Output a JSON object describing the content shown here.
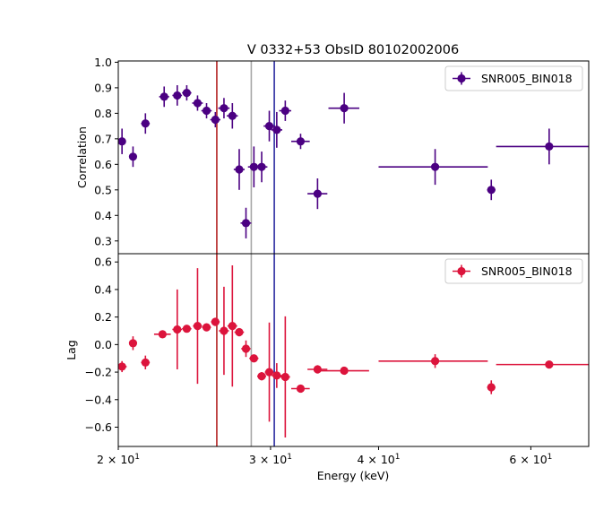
{
  "chart_data": {
    "type": "scatter",
    "title": "V 0332+53 ObsID 80102002006",
    "xlabel": "Energy (keV)",
    "xscale": "log",
    "xlim": [
      20.0,
      70.0
    ],
    "xticks": [
      {
        "value": 20,
        "base": "2 × 10",
        "exp": "1"
      },
      {
        "value": 30,
        "base": "3 × 10",
        "exp": "1"
      },
      {
        "value": 40,
        "base": "4 × 10",
        "exp": "1"
      },
      {
        "value": 60,
        "base": "6 × 10",
        "exp": "1"
      }
    ],
    "vlines": [
      {
        "x": 26.0,
        "color": "#b22222"
      },
      {
        "x": 28.5,
        "color": "#a8a8a8"
      },
      {
        "x": 30.3,
        "color": "#2a2aa0"
      }
    ],
    "panels": [
      {
        "name": "correlation",
        "ylabel": "Correlation",
        "ylim": [
          0.25,
          1.005
        ],
        "yticks": [
          {
            "value": 0.3,
            "label": "0.3"
          },
          {
            "value": 0.4,
            "label": "0.4"
          },
          {
            "value": 0.5,
            "label": "0.5"
          },
          {
            "value": 0.6,
            "label": "0.6"
          },
          {
            "value": 0.7,
            "label": "0.7"
          },
          {
            "value": 0.8,
            "label": "0.8"
          },
          {
            "value": 0.9,
            "label": "0.9"
          },
          {
            "value": 1.0,
            "label": "1.0"
          }
        ],
        "series": [
          {
            "name": "SNR005_BIN018",
            "color": "#4b0082",
            "points": [
              {
                "x": 20.2,
                "xerr": [
                  0.2,
                  0.2
                ],
                "y": 0.69,
                "yerr": 0.05
              },
              {
                "x": 20.8,
                "xerr": [
                  0.2,
                  0.2
                ],
                "y": 0.63,
                "yerr": 0.04
              },
              {
                "x": 21.5,
                "xerr": [
                  0.25,
                  0.25
                ],
                "y": 0.76,
                "yerr": 0.04
              },
              {
                "x": 22.6,
                "xerr": [
                  0.3,
                  0.3
                ],
                "y": 0.865,
                "yerr": 0.04
              },
              {
                "x": 23.4,
                "xerr": [
                  0.3,
                  0.3
                ],
                "y": 0.87,
                "yerr": 0.04
              },
              {
                "x": 24.0,
                "xerr": [
                  0.3,
                  0.3
                ],
                "y": 0.88,
                "yerr": 0.03
              },
              {
                "x": 24.7,
                "xerr": [
                  0.35,
                  0.35
                ],
                "y": 0.84,
                "yerr": 0.03
              },
              {
                "x": 25.3,
                "xerr": [
                  0.35,
                  0.35
                ],
                "y": 0.81,
                "yerr": 0.03
              },
              {
                "x": 25.9,
                "xerr": [
                  0.35,
                  0.35
                ],
                "y": 0.775,
                "yerr": 0.03
              },
              {
                "x": 26.5,
                "xerr": [
                  0.4,
                  0.4
                ],
                "y": 0.82,
                "yerr": 0.04
              },
              {
                "x": 27.1,
                "xerr": [
                  0.4,
                  0.4
                ],
                "y": 0.79,
                "yerr": 0.05
              },
              {
                "x": 27.6,
                "xerr": [
                  0.4,
                  0.4
                ],
                "y": 0.58,
                "yerr": 0.08
              },
              {
                "x": 28.1,
                "xerr": [
                  0.4,
                  0.4
                ],
                "y": 0.37,
                "yerr": 0.06
              },
              {
                "x": 28.7,
                "xerr": [
                  0.45,
                  0.45
                ],
                "y": 0.59,
                "yerr": 0.08
              },
              {
                "x": 29.3,
                "xerr": [
                  0.45,
                  0.45
                ],
                "y": 0.59,
                "yerr": 0.06
              },
              {
                "x": 29.9,
                "xerr": [
                  0.45,
                  0.45
                ],
                "y": 0.75,
                "yerr": 0.06
              },
              {
                "x": 30.5,
                "xerr": [
                  0.45,
                  0.45
                ],
                "y": 0.735,
                "yerr": 0.07
              },
              {
                "x": 31.2,
                "xerr": [
                  0.5,
                  0.5
                ],
                "y": 0.81,
                "yerr": 0.04
              },
              {
                "x": 32.5,
                "xerr": [
                  0.8,
                  0.8
                ],
                "y": 0.69,
                "yerr": 0.03
              },
              {
                "x": 34.0,
                "xerr": [
                  0.9,
                  0.9
                ],
                "y": 0.485,
                "yerr": 0.06
              },
              {
                "x": 36.5,
                "xerr": [
                  1.5,
                  1.5
                ],
                "y": 0.82,
                "yerr": 0.06
              },
              {
                "x": 46.5,
                "xerr": [
                  6.5,
                  7.0
                ],
                "y": 0.59,
                "yerr": 0.07
              },
              {
                "x": 54.0,
                "xerr": [
                  0.6,
                  0.6
                ],
                "y": 0.5,
                "yerr": 0.04
              },
              {
                "x": 63.0,
                "xerr": [
                  8.3,
                  7.0
                ],
                "y": 0.67,
                "yerr": 0.07
              }
            ]
          }
        ]
      },
      {
        "name": "lag",
        "ylabel": "Lag",
        "ylim": [
          -0.74,
          0.66
        ],
        "yticks": [
          {
            "value": -0.6,
            "label": "−0.6"
          },
          {
            "value": -0.4,
            "label": "−0.4"
          },
          {
            "value": -0.2,
            "label": "−0.2"
          },
          {
            "value": 0.0,
            "label": "0.0"
          },
          {
            "value": 0.2,
            "label": "0.2"
          },
          {
            "value": 0.4,
            "label": "0.4"
          },
          {
            "value": 0.6,
            "label": "0.6"
          }
        ],
        "series": [
          {
            "name": "SNR005_BIN018",
            "color": "#dc143c",
            "points": [
              {
                "x": 20.2,
                "xerr": [
                  0.25,
                  0.25
                ],
                "y": -0.16,
                "yerr": 0.04
              },
              {
                "x": 20.8,
                "xerr": [
                  0.2,
                  0.2
                ],
                "y": 0.01,
                "yerr": 0.05
              },
              {
                "x": 21.5,
                "xerr": [
                  0.25,
                  0.25
                ],
                "y": -0.13,
                "yerr": 0.05
              },
              {
                "x": 22.5,
                "xerr": [
                  0.5,
                  0.5
                ],
                "y": 0.075,
                "yerr": 0.02
              },
              {
                "x": 23.4,
                "xerr": [
                  0.3,
                  0.3
                ],
                "y": 0.11,
                "yerr": 0.29
              },
              {
                "x": 24.0,
                "xerr": [
                  0.3,
                  0.3
                ],
                "y": 0.115,
                "yerr": 0.02
              },
              {
                "x": 24.7,
                "xerr": [
                  0.3,
                  0.3
                ],
                "y": 0.135,
                "yerr": 0.42
              },
              {
                "x": 25.3,
                "xerr": [
                  0.3,
                  0.3
                ],
                "y": 0.125,
                "yerr": 0.02
              },
              {
                "x": 25.9,
                "xerr": [
                  0.3,
                  0.3
                ],
                "y": 0.165,
                "yerr": 0.03
              },
              {
                "x": 26.5,
                "xerr": [
                  0.35,
                  0.35
                ],
                "y": 0.1,
                "yerr": 0.32
              },
              {
                "x": 27.1,
                "xerr": [
                  0.35,
                  0.35
                ],
                "y": 0.135,
                "yerr": 0.44
              },
              {
                "x": 27.6,
                "xerr": [
                  0.35,
                  0.35
                ],
                "y": 0.09,
                "yerr": 0.03
              },
              {
                "x": 28.1,
                "xerr": [
                  0.35,
                  0.35
                ],
                "y": -0.03,
                "yerr": 0.06
              },
              {
                "x": 28.7,
                "xerr": [
                  0.35,
                  0.35
                ],
                "y": -0.1,
                "yerr": 0.02
              },
              {
                "x": 29.3,
                "xerr": [
                  0.35,
                  0.35
                ],
                "y": -0.23,
                "yerr": 0.03
              },
              {
                "x": 29.9,
                "xerr": [
                  0.35,
                  0.35
                ],
                "y": -0.2,
                "yerr": 0.36
              },
              {
                "x": 30.5,
                "xerr": [
                  0.4,
                  0.4
                ],
                "y": -0.225,
                "yerr": 0.09
              },
              {
                "x": 31.2,
                "xerr": [
                  0.4,
                  0.4
                ],
                "y": -0.235,
                "yerr": 0.44
              },
              {
                "x": 32.5,
                "xerr": [
                  0.8,
                  0.8
                ],
                "y": -0.32,
                "yerr": 0.02
              },
              {
                "x": 34.0,
                "xerr": [
                  0.9,
                  0.9
                ],
                "y": -0.18,
                "yerr": 0.03
              },
              {
                "x": 36.5,
                "xerr": [
                  2.5,
                  2.5
                ],
                "y": -0.19,
                "yerr": 0.02
              },
              {
                "x": 46.5,
                "xerr": [
                  6.5,
                  7.0
                ],
                "y": -0.12,
                "yerr": 0.05
              },
              {
                "x": 54.0,
                "xerr": [
                  0.6,
                  0.6
                ],
                "y": -0.31,
                "yerr": 0.05
              },
              {
                "x": 63.0,
                "xerr": [
                  8.3,
                  7.0
                ],
                "y": -0.145,
                "yerr": 0.02
              }
            ]
          }
        ]
      }
    ]
  }
}
